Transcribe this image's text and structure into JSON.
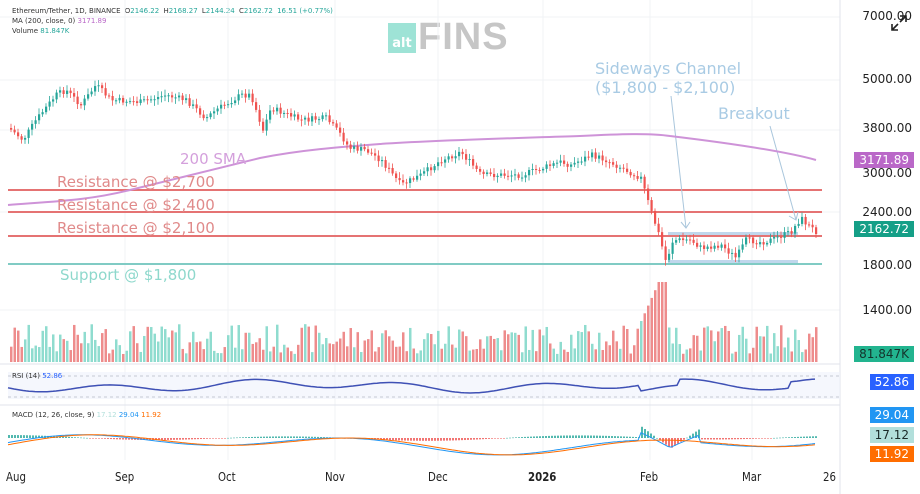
{
  "header": {
    "symbol": "Ethereum/Tether, 1D, BINANCE",
    "open_label": "O",
    "open": "2146.22",
    "high_label": "H",
    "high": "2168.27",
    "low_label": "L",
    "low": "2144.24",
    "close_label": "C",
    "close": "2162.72",
    "change": "16.51 (+0.77%)",
    "ma_label": "MA (200, close, 0)",
    "ma_value": "3171.89",
    "volume_label": "Volume",
    "volume_value": "81.847K"
  },
  "logo": {
    "prefix": "alt",
    "name": "FINS"
  },
  "price_axis": [
    "7000.00",
    "5000.00",
    "3800.00",
    "3000.00",
    "2400.00",
    "1800.00",
    "1400.00"
  ],
  "tags": {
    "sma": "3171.89",
    "price": "2162.72",
    "volume": "81.847K",
    "rsi": "52.86",
    "macd": "29.04",
    "hist": "17.12",
    "signal": "11.92"
  },
  "annotations": {
    "sma": "200 SMA",
    "res2700": "Resistance @ $2,700",
    "res2400": "Resistance @ $2,400",
    "res2100": "Resistance @ $2,100",
    "support": "Support @ $1,800",
    "channel_line1": "Sideways Channel",
    "channel_line2": "($1,800 - $2,100)",
    "breakout": "Breakout"
  },
  "rsi": {
    "label": "RSI (14)",
    "value": "52.86"
  },
  "macd": {
    "label": "MACD (12, 26, close, 9)",
    "hist": "17.12",
    "macd": "29.04",
    "signal": "11.92"
  },
  "x_axis": [
    "Aug",
    "Sep",
    "Oct",
    "Nov",
    "Dec",
    "2026",
    "Feb",
    "Mar",
    "26"
  ],
  "colors": {
    "up": "#26a69a",
    "down": "#ef5350",
    "sma": "#ce93d8",
    "resistance": "#e57373",
    "support": "#80cbc4",
    "rsi": "#3f51b5",
    "macd": "#2196f3",
    "signal": "#ff6d00",
    "annotation_blue": "#a9cbe4"
  },
  "chart_data": {
    "type": "candlestick",
    "title": "Ethereum/Tether, 1D, BINANCE",
    "x": [
      "Aug",
      "Sep",
      "Oct",
      "Nov",
      "Dec",
      "2026",
      "Feb",
      "Mar"
    ],
    "approx_close_path": [
      3600,
      4600,
      4300,
      4500,
      3900,
      4400,
      3900,
      3800,
      3300,
      3000,
      2950,
      3300,
      3000,
      3100,
      3300,
      3000,
      2300,
      1950,
      2000,
      1950,
      2100,
      2350,
      2162.72
    ],
    "sma_200_path": [
      2450,
      2550,
      2800,
      3100,
      3250,
      3350,
      3420,
      3500,
      3550,
      3600,
      3550,
      3171.89
    ],
    "horizontal_levels": {
      "resistance": [
        2700,
        2400,
        2100
      ],
      "support": [
        1800
      ]
    },
    "sideways_channel": [
      1800,
      2100
    ],
    "last_close": 2162.72,
    "volume_last": "81.847K",
    "rsi_last": 52.86,
    "macd": {
      "macd": 29.04,
      "signal": 11.92,
      "hist": 17.12
    },
    "ylim": [
      1400,
      7000
    ],
    "yscale": "log"
  }
}
